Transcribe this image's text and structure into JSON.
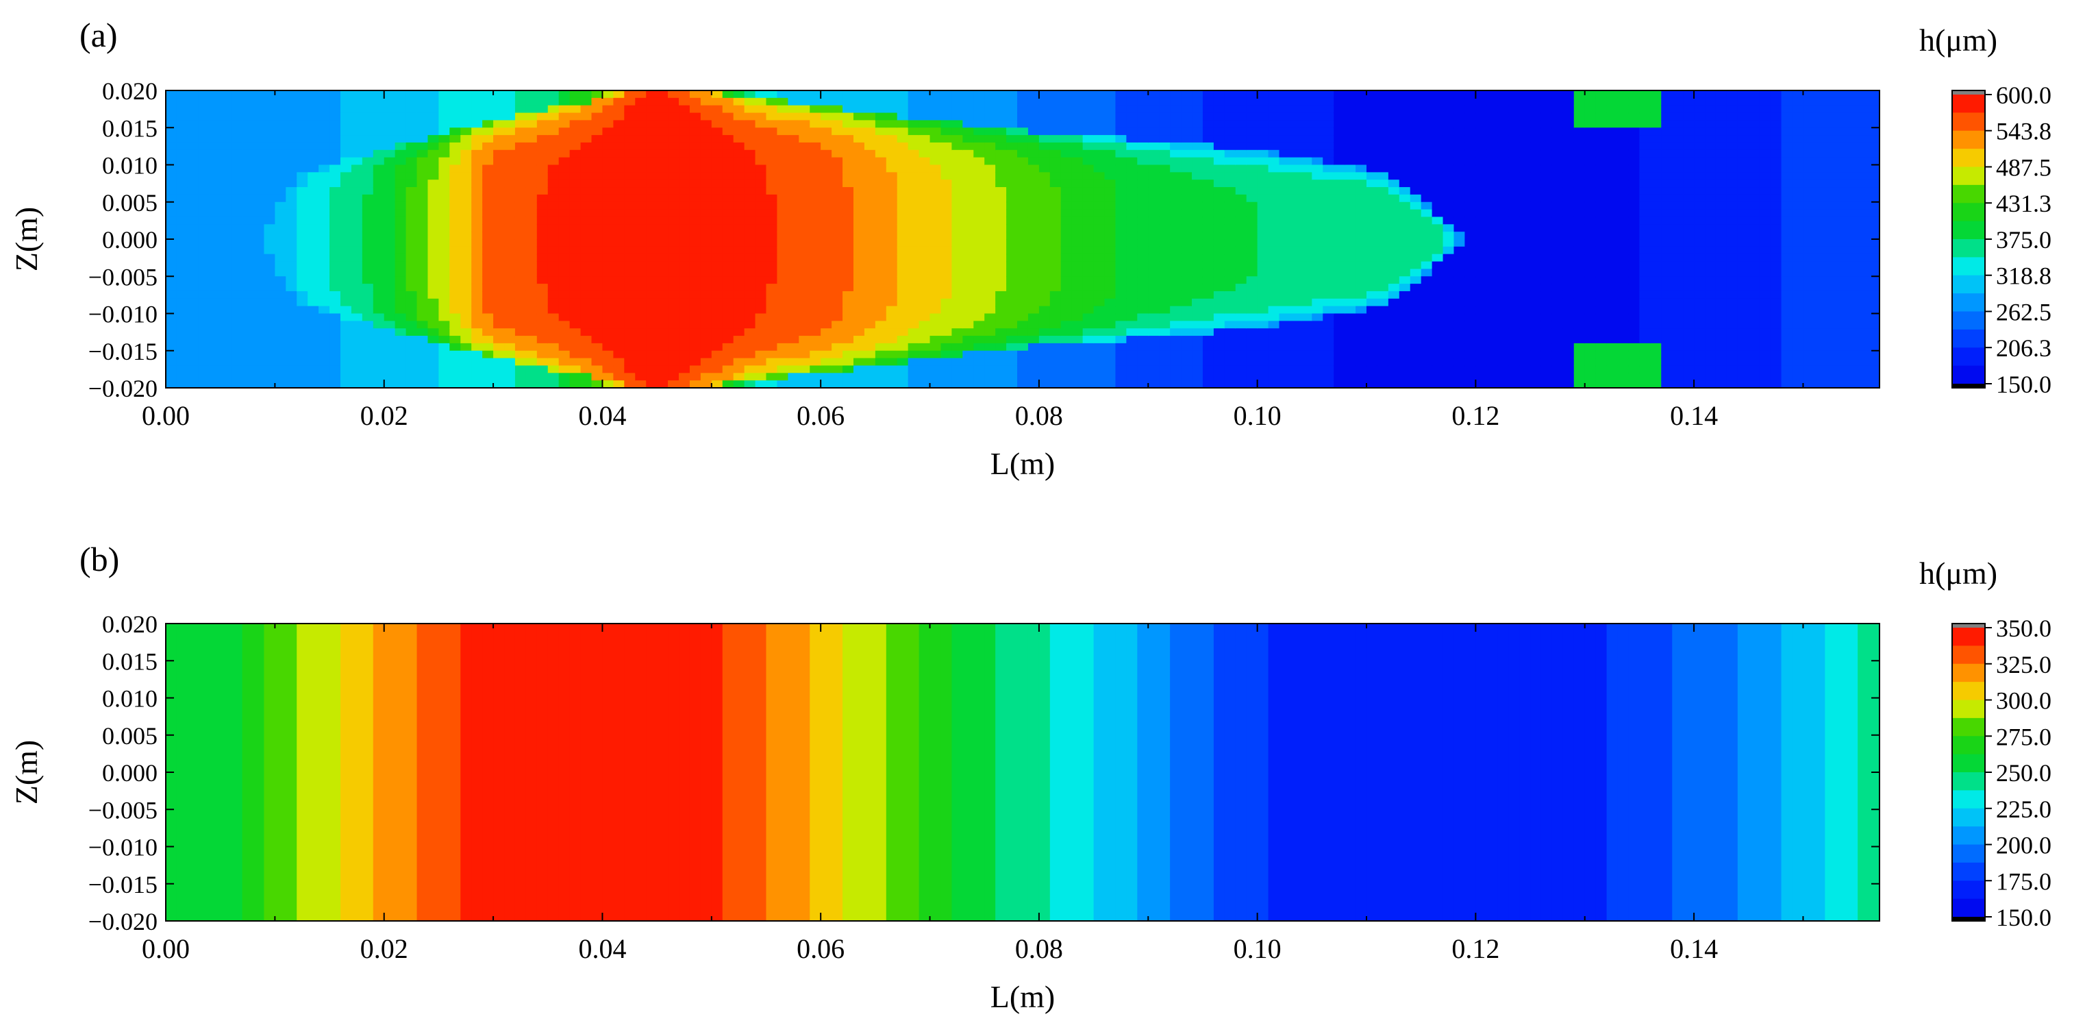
{
  "chart_data": [
    {
      "type": "heatmap",
      "panel_label": "(a)",
      "xlabel": "L(m)",
      "ylabel": "Z(m)",
      "xlim": [
        0.0,
        0.157
      ],
      "ylim": [
        -0.02,
        0.02
      ],
      "x_ticks": [
        "0.00",
        "0.02",
        "0.04",
        "0.06",
        "0.08",
        "0.10",
        "0.12",
        "0.14"
      ],
      "y_ticks": [
        "0.020",
        "0.015",
        "0.010",
        "0.005",
        "0.000",
        "−0.005",
        "−0.010",
        "−0.015",
        "−0.020"
      ],
      "colorbar": {
        "title": "h(μm)",
        "min": 150.0,
        "max": 600.0,
        "ticks": [
          "600.0",
          "543.8",
          "487.5",
          "431.3",
          "375.0",
          "318.8",
          "262.5",
          "206.3",
          "150.0"
        ]
      },
      "field": {
        "description_shape": "lens",
        "x_profile_L": [
          0.0,
          0.003,
          0.008,
          0.013,
          0.019,
          0.025,
          0.03,
          0.045,
          0.06,
          0.068,
          0.075,
          0.08,
          0.088,
          0.095,
          0.1,
          0.105,
          0.11,
          0.116,
          0.12,
          0.125,
          0.13,
          0.135,
          0.14,
          0.146,
          0.157
        ],
        "x_profile_h": [
          270,
          268,
          290,
          330,
          380,
          470,
          560,
          600,
          560,
          510,
          470,
          440,
          400,
          380,
          375,
          372,
          370,
          365,
          260,
          180,
          170,
          170,
          180,
          200,
          230
        ],
        "lens_half_width_m": [
          0.0,
          0.004,
          0.0085,
          0.0095,
          0.016,
          0.02,
          0.02,
          0.018,
          0.015,
          0.012,
          0.009,
          0.0
        ],
        "lens_half_width_L": [
          0.009,
          0.01,
          0.012,
          0.014,
          0.03,
          0.044,
          0.048,
          0.06,
          0.075,
          0.1,
          0.112,
          0.119
        ],
        "outside_L": [
          0.0,
          0.01,
          0.02,
          0.035,
          0.045,
          0.055,
          0.07,
          0.085,
          0.1,
          0.11,
          0.12,
          0.13,
          0.14,
          0.15,
          0.157
        ],
        "outside_h": [
          270,
          275,
          300,
          360,
          560,
          320,
          285,
          240,
          190,
          172,
          168,
          170,
          185,
          210,
          235
        ],
        "corner_patch_L": 0.133,
        "corner_patch_h": 380
      }
    },
    {
      "type": "heatmap",
      "panel_label": "(b)",
      "xlabel": "L(m)",
      "ylabel": "Z(m)",
      "xlim": [
        0.0,
        0.157
      ],
      "ylim": [
        -0.02,
        0.02
      ],
      "x_ticks": [
        "0.00",
        "0.02",
        "0.04",
        "0.06",
        "0.08",
        "0.10",
        "0.12",
        "0.14"
      ],
      "y_ticks": [
        "0.020",
        "0.015",
        "0.010",
        "0.005",
        "0.000",
        "−0.005",
        "−0.010",
        "−0.015",
        "−0.020"
      ],
      "colorbar": {
        "title": "h(μm)",
        "min": 150.0,
        "max": 350.0,
        "ticks": [
          "350.0",
          "325.0",
          "300.0",
          "275.0",
          "250.0",
          "225.0",
          "200.0",
          "175.0",
          "150.0"
        ]
      },
      "field": {
        "description_shape": "uniform_in_z",
        "x_profile_L": [
          0.0,
          0.006,
          0.013,
          0.021,
          0.03,
          0.04,
          0.05,
          0.057,
          0.065,
          0.072,
          0.078,
          0.085,
          0.092,
          0.1,
          0.11,
          0.12,
          0.128,
          0.136,
          0.144,
          0.151,
          0.157
        ],
        "x_profile_h": [
          250,
          260,
          290,
          320,
          345,
          349,
          340,
          320,
          290,
          262,
          245,
          225,
          200,
          176,
          164,
          163,
          168,
          182,
          200,
          222,
          245
        ]
      }
    }
  ]
}
